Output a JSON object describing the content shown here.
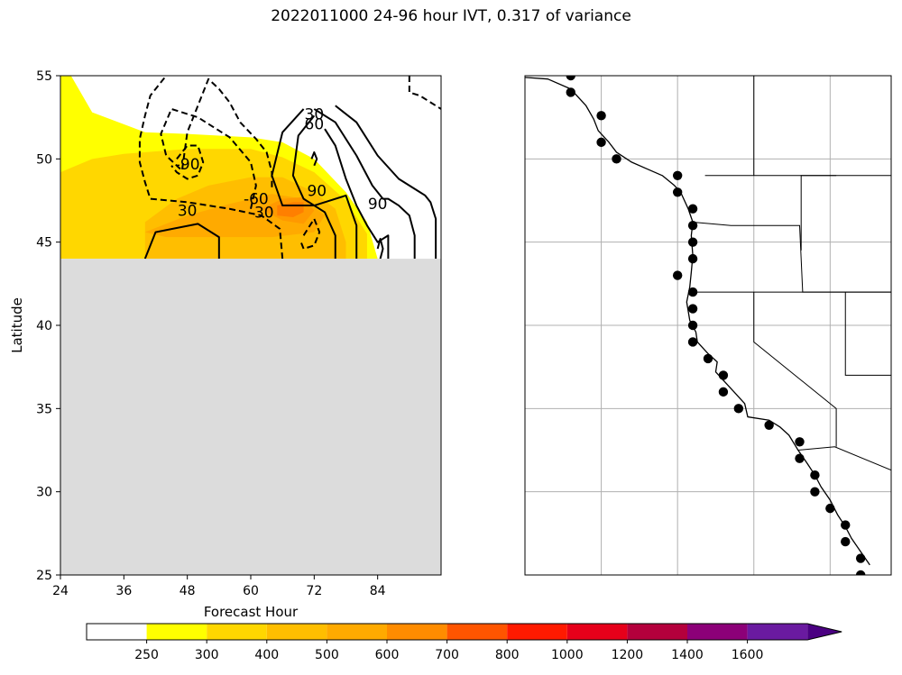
{
  "title": "2022011000 24-96 hour IVT, 0.317 of variance",
  "chart_data": [
    {
      "type": "heatmap",
      "name": "hovmoller",
      "xlabel": "Forecast Hour",
      "ylabel": "Latitude",
      "xlim": [
        24,
        96
      ],
      "ylim": [
        25,
        55
      ],
      "xticks": [
        24,
        36,
        48,
        60,
        72,
        84
      ],
      "yticks": [
        25,
        30,
        35,
        40,
        45,
        50,
        55
      ],
      "missing_below_latitude": 44,
      "missing_color": "#dcdcdc",
      "fill_levels": [
        {
          "level": 250,
          "color": "#ffff00",
          "x": [
            24,
            26,
            30,
            40,
            48,
            60,
            66,
            72,
            78,
            82,
            84,
            86,
            86,
            24
          ],
          "y": [
            55,
            55,
            52.8,
            51.6,
            51.5,
            51.3,
            51.0,
            50.0,
            48.0,
            46.2,
            44.0,
            44.0,
            44.0,
            44.0
          ]
        },
        {
          "level": 300,
          "color": "#ffd700",
          "x": [
            24,
            30,
            36,
            48,
            60,
            66,
            72,
            78,
            82,
            82,
            24
          ],
          "y": [
            49.2,
            50.0,
            50.3,
            50.6,
            50.6,
            50.1,
            49.2,
            47.5,
            45.5,
            44.0,
            44.0
          ]
        },
        {
          "level": 400,
          "color": "#ffbe00",
          "x": [
            40,
            46,
            52,
            60,
            66,
            72,
            76,
            78,
            78,
            40
          ],
          "y": [
            46.2,
            47.6,
            48.4,
            48.9,
            48.9,
            48.0,
            47.0,
            45.0,
            44.0,
            44.0
          ]
        },
        {
          "level": 500,
          "color": "#ffaa00",
          "x": [
            40,
            48,
            56,
            64,
            70,
            74,
            72,
            64,
            54,
            44
          ],
          "y": [
            45.6,
            46.6,
            47.3,
            47.9,
            47.6,
            46.6,
            45.6,
            45.3,
            45.3,
            45.3
          ]
        },
        {
          "level": 600,
          "color": "#ff9900",
          "x": [
            62,
            66,
            70,
            72,
            70,
            66
          ],
          "y": [
            47.0,
            47.6,
            47.7,
            46.9,
            46.1,
            46.3
          ]
        },
        {
          "level": 700,
          "color": "#ff7f00",
          "x": [
            65,
            68,
            70,
            70,
            68,
            65
          ],
          "y": [
            47.2,
            47.4,
            47.4,
            46.8,
            46.5,
            46.6
          ]
        }
      ],
      "contours": [
        {
          "level": 30,
          "style": "solid",
          "x": [
            40,
            42,
            50,
            54,
            54
          ],
          "y": [
            44.0,
            45.6,
            46.1,
            45.3,
            44.0
          ]
        },
        {
          "level": 30,
          "style": "solid",
          "x": [
            70,
            66,
            64,
            66,
            72,
            78,
            80,
            80
          ],
          "y": [
            53.0,
            51.6,
            49.0,
            47.2,
            47.2,
            47.8,
            46.0,
            44.0
          ]
        },
        {
          "level": 60,
          "style": "solid",
          "x": [
            72,
            69,
            68,
            70,
            74,
            76,
            76
          ],
          "y": [
            52.6,
            51.4,
            49.0,
            47.6,
            46.8,
            45.4,
            44.0
          ]
        },
        {
          "level": 90,
          "style": "solid",
          "x": [
            71.5,
            72,
            72.5,
            72
          ],
          "y": [
            50.0,
            50.4,
            50.0,
            49.6
          ]
        },
        {
          "level": 90,
          "style": "solid",
          "x": [
            74,
            76,
            78,
            80,
            82,
            84,
            86,
            86
          ],
          "y": [
            51.8,
            50.8,
            48.8,
            47.2,
            46.0,
            45.0,
            45.4,
            44.0
          ]
        },
        {
          "level": 90,
          "style": "solid",
          "x": [
            84,
            84.5,
            85,
            84.5
          ],
          "y": [
            44.6,
            45.2,
            44.6,
            44.0
          ]
        },
        {
          "level": 60,
          "style": "solid",
          "x": [
            72,
            76,
            80,
            83,
            85,
            86,
            88,
            90,
            91,
            91
          ],
          "y": [
            53.0,
            52.2,
            50.2,
            48.4,
            47.6,
            47.6,
            47.2,
            46.6,
            45.4,
            44.0
          ]
        },
        {
          "level": 30,
          "style": "solid",
          "x": [
            76,
            80,
            84,
            88,
            92,
            93,
            94,
            95,
            95
          ],
          "y": [
            53.2,
            52.2,
            50.2,
            48.8,
            48.0,
            47.8,
            47.4,
            46.4,
            44.0
          ]
        },
        {
          "level": -30,
          "style": "dashed",
          "x": [
            66,
            65.5,
            62,
            56,
            48,
            41,
            40,
            39,
            39,
            40,
            41,
            42,
            44
          ],
          "y": [
            44.0,
            45.8,
            46.6,
            47.0,
            47.4,
            47.6,
            48.6,
            49.8,
            51.2,
            52.6,
            53.8,
            54.2,
            55.0
          ]
        },
        {
          "level": -60,
          "style": "dashed",
          "x": [
            60,
            61,
            60,
            56,
            50,
            45,
            43,
            44,
            46,
            47,
            48,
            50,
            51.5,
            52,
            54,
            56,
            58,
            61,
            63,
            64,
            64
          ],
          "y": [
            47.0,
            48.4,
            49.8,
            51.3,
            52.5,
            53.0,
            51.5,
            50.2,
            49.6,
            49.3,
            51.6,
            53.2,
            54.4,
            54.8,
            54.2,
            53.4,
            52.2,
            51.2,
            50.4,
            49.2,
            48.2
          ]
        },
        {
          "level": -90,
          "style": "dashed",
          "x": [
            46,
            48,
            50,
            51,
            50,
            48,
            46,
            45
          ],
          "y": [
            50.0,
            50.8,
            50.8,
            49.8,
            49.0,
            48.8,
            49.2,
            49.6
          ]
        },
        {
          "level": -30,
          "style": "dashed",
          "x": [
            70,
            72,
            73,
            72,
            70,
            69.5
          ],
          "y": [
            45.4,
            46.4,
            45.6,
            44.8,
            44.6,
            45.0
          ]
        },
        {
          "level": -30,
          "style": "dashed",
          "x": [
            90,
            90,
            92,
            96
          ],
          "y": [
            55.0,
            54.0,
            53.8,
            53.0
          ]
        }
      ],
      "contour_labels": [
        {
          "text": "30",
          "x": 72,
          "y": 52.7
        },
        {
          "text": "60",
          "x": 72,
          "y": 52.1
        },
        {
          "text": "-90",
          "x": 48,
          "y": 49.7
        },
        {
          "text": "90",
          "x": 72.5,
          "y": 48.1
        },
        {
          "text": "-60",
          "x": 61,
          "y": 47.6
        },
        {
          "text": "-30",
          "x": 62,
          "y": 46.8
        },
        {
          "text": "30",
          "x": 48,
          "y": 46.9
        },
        {
          "text": "90",
          "x": 84,
          "y": 47.3
        }
      ]
    },
    {
      "type": "scatter",
      "name": "station-map",
      "projection": "lon-lat",
      "xlim": [
        -135,
        -111
      ],
      "ylim": [
        25,
        55
      ],
      "gridlines_lon": [
        -130,
        -125,
        -120,
        -115
      ],
      "gridlines_lat": [
        30,
        35,
        40,
        45,
        50
      ],
      "grid": true,
      "points": [
        {
          "lon": -132.0,
          "lat": 55.0
        },
        {
          "lon": -132.0,
          "lat": 54.0
        },
        {
          "lon": -130.0,
          "lat": 52.6
        },
        {
          "lon": -130.0,
          "lat": 51.0
        },
        {
          "lon": -129.0,
          "lat": 50.0
        },
        {
          "lon": -125.0,
          "lat": 49.0
        },
        {
          "lon": -125.0,
          "lat": 48.0
        },
        {
          "lon": -124.0,
          "lat": 47.0
        },
        {
          "lon": -124.0,
          "lat": 46.0
        },
        {
          "lon": -124.0,
          "lat": 45.0
        },
        {
          "lon": -124.0,
          "lat": 44.0
        },
        {
          "lon": -125.0,
          "lat": 43.0
        },
        {
          "lon": -124.0,
          "lat": 42.0
        },
        {
          "lon": -124.0,
          "lat": 41.0
        },
        {
          "lon": -124.0,
          "lat": 40.0
        },
        {
          "lon": -124.0,
          "lat": 39.0
        },
        {
          "lon": -123.0,
          "lat": 38.0
        },
        {
          "lon": -122.0,
          "lat": 37.0
        },
        {
          "lon": -122.0,
          "lat": 36.0
        },
        {
          "lon": -121.0,
          "lat": 35.0
        },
        {
          "lon": -119.0,
          "lat": 34.0
        },
        {
          "lon": -117.0,
          "lat": 33.0
        },
        {
          "lon": -117.0,
          "lat": 32.0
        },
        {
          "lon": -116.0,
          "lat": 31.0
        },
        {
          "lon": -116.0,
          "lat": 30.0
        },
        {
          "lon": -115.0,
          "lat": 29.0
        },
        {
          "lon": -114.0,
          "lat": 28.0
        },
        {
          "lon": -114.0,
          "lat": 27.0
        },
        {
          "lon": -113.0,
          "lat": 26.0
        },
        {
          "lon": -113.0,
          "lat": 25.0
        }
      ],
      "coastline": {
        "lon": [
          -135,
          -133.5,
          -132,
          -131,
          -130.5,
          -130.2,
          -129.5,
          -129,
          -128,
          -127,
          -126,
          -125.2,
          -124.8,
          -124.3,
          -124.0,
          -124.1,
          -124.0,
          -124.1,
          -124.2,
          -124.4,
          -124.2,
          -123.8,
          -123.7,
          -123.0,
          -122.4,
          -122.5,
          -121.9,
          -121.2,
          -120.6,
          -120.4,
          -119.0,
          -118.3,
          -117.7,
          -117.3,
          -117.1,
          -116.5,
          -116.0,
          -115.6,
          -115.0,
          -114.5,
          -114.0,
          -113.6,
          -113.0,
          -112.4
        ],
        "lat": [
          54.9,
          54.8,
          54.2,
          53.2,
          52.4,
          51.7,
          51.0,
          50.4,
          49.8,
          49.4,
          49.0,
          48.4,
          48.0,
          47.0,
          46.2,
          45.4,
          44.2,
          43.2,
          42.3,
          41.4,
          40.3,
          39.6,
          39.0,
          38.3,
          37.8,
          37.2,
          36.6,
          35.9,
          35.3,
          34.5,
          34.3,
          33.9,
          33.4,
          32.8,
          32.5,
          31.7,
          31.0,
          30.3,
          29.5,
          28.6,
          27.9,
          27.2,
          26.4,
          25.6
        ]
      },
      "borders": [
        {
          "lon": [
            -123.2,
            -118,
            -113.5,
            -111
          ],
          "lat": [
            49.0,
            49.0,
            49.0,
            49.0
          ]
        },
        {
          "lon": [
            -124.2,
            -120.2,
            -117.0,
            -111
          ],
          "lat": [
            42.0,
            42.0,
            42.0,
            42.0
          ]
        },
        {
          "lon": [
            -124.0,
            -121.5,
            -119.6,
            -117.0,
            -116.8,
            -111
          ],
          "lat": [
            46.2,
            46.0,
            46.0,
            46.0,
            42.0,
            42.0
          ]
        },
        {
          "lon": [
            -120.0,
            -120.0,
            -114.6,
            -114.6
          ],
          "lat": [
            42.0,
            39.0,
            35.0,
            32.7
          ]
        },
        {
          "lon": [
            -117.1,
            -114.7,
            -111
          ],
          "lat": [
            32.5,
            32.7,
            31.3
          ]
        },
        {
          "lon": [
            -116.9,
            -116.9,
            -114.6
          ],
          "lat": [
            44.5,
            49.0,
            49.0
          ]
        },
        {
          "lon": [
            -114.0,
            -114.0,
            -111
          ],
          "lat": [
            42.0,
            37.0,
            37.0
          ]
        },
        {
          "lon": [
            -120.0,
            -120.0
          ],
          "lat": [
            49.0,
            55.0
          ]
        }
      ]
    },
    {
      "type": "colorbar",
      "name": "ivt-colorbar",
      "levels": [
        250,
        300,
        400,
        500,
        600,
        700,
        800,
        1000,
        1200,
        1400,
        1600
      ],
      "colors": [
        "#ffffff",
        "#ffff00",
        "#ffd700",
        "#ffbe00",
        "#ffaa00",
        "#ff8c00",
        "#ff5500",
        "#ff1a00",
        "#e6001a",
        "#b4003c",
        "#8c0078",
        "#6a1aa0",
        "#4b0082"
      ],
      "extend": "max"
    }
  ]
}
